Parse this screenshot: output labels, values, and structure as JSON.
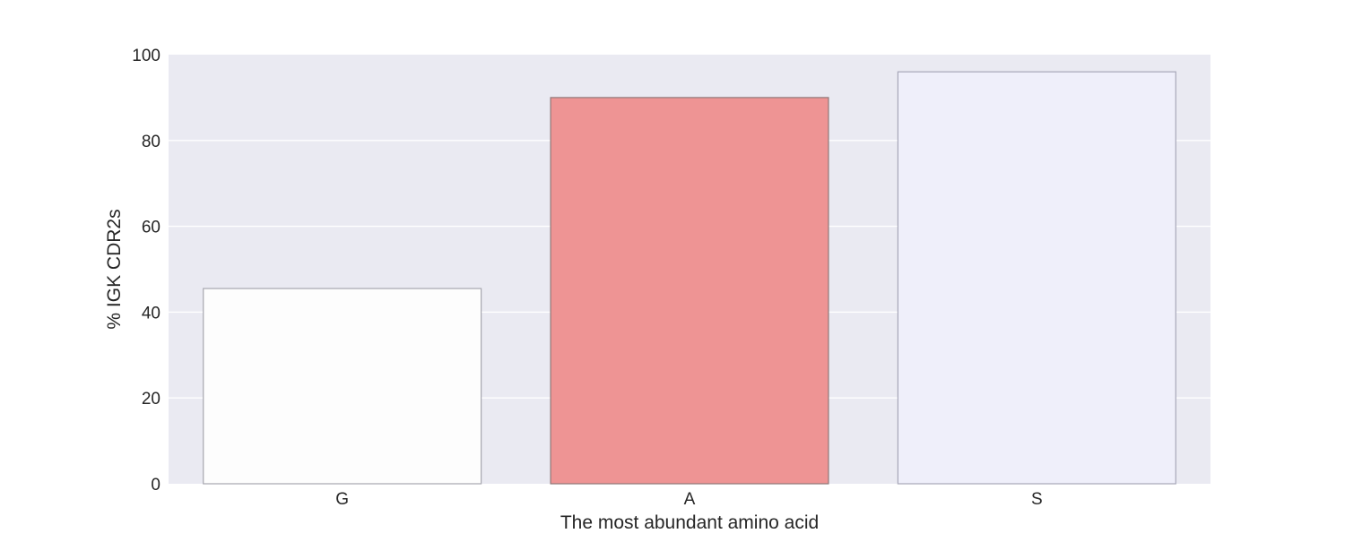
{
  "chart_data": {
    "type": "bar",
    "title": "",
    "xlabel": "The most abundant amino acid",
    "ylabel": "% IGK CDR2s",
    "categories": [
      "G",
      "A",
      "S"
    ],
    "values": [
      45.5,
      90.0,
      96.0
    ],
    "ylim": [
      0,
      100
    ],
    "yticks": [
      0,
      20,
      40,
      60,
      80,
      100
    ],
    "ytick_labels": [
      "0",
      "20",
      "40",
      "60",
      "80",
      "100"
    ],
    "grid": true,
    "legend": "none",
    "bar_colors": [
      "#fdfdfd",
      "#ee9494",
      "#efeffa"
    ],
    "bar_edge_colors": [
      "#a7a7b0",
      "#8f7777",
      "#a7a7b8"
    ],
    "background_color": "#eaeaf2",
    "grid_color": "#ffffff"
  }
}
